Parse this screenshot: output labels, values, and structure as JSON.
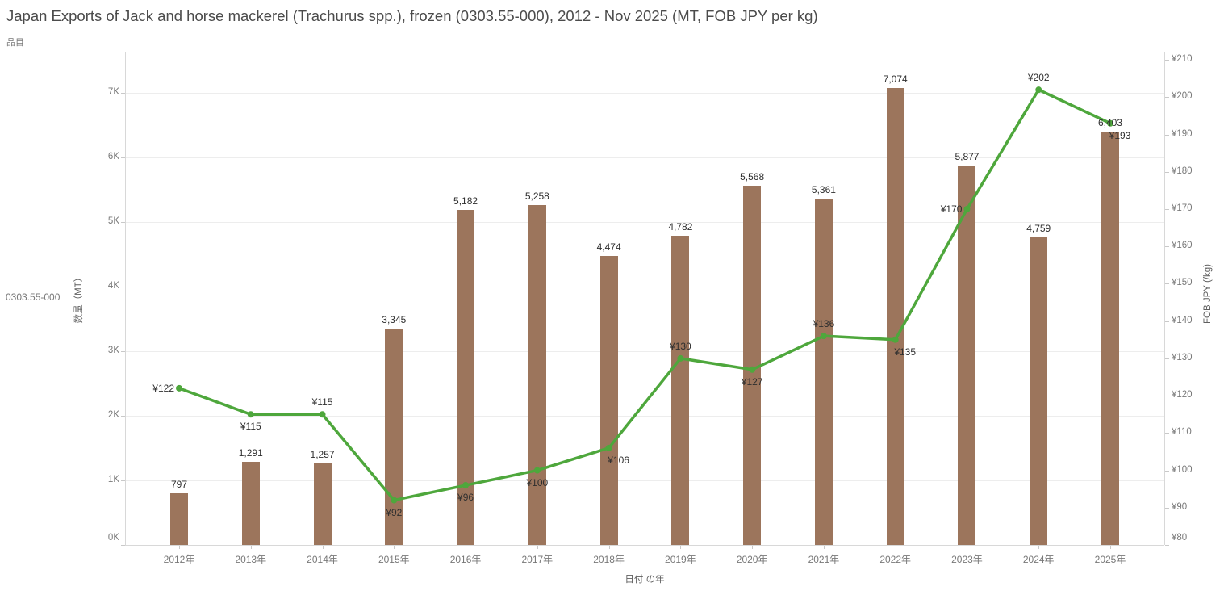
{
  "header": {
    "title": "Japan Exports of Jack and horse mackerel (Trachurus spp.), frozen (0303.55-000), 2012 - Nov 2025 (MT, FOB JPY per kg)",
    "sheet_label": "品目",
    "row_label": "0303.55-000"
  },
  "chart_data": {
    "type": "bar+line combo",
    "title": "Japan Exports of Jack and horse mackerel (Trachurus spp.), frozen (0303.55-000), 2012 - Nov 2025 (MT, FOB JPY per kg)",
    "categories": [
      "2012年",
      "2013年",
      "2014年",
      "2015年",
      "2016年",
      "2017年",
      "2018年",
      "2019年",
      "2020年",
      "2021年",
      "2022年",
      "2023年",
      "2024年",
      "2025年"
    ],
    "series": [
      {
        "name": "数量（MT）",
        "type": "bar",
        "color": "#9c755c",
        "values": [
          797,
          1291,
          1257,
          3345,
          5182,
          5258,
          4474,
          4782,
          5568,
          5361,
          7074,
          5877,
          4759,
          6403
        ],
        "labels": [
          "797",
          "1,291",
          "1,257",
          "3,345",
          "5,182",
          "5,258",
          "4,474",
          "4,782",
          "5,568",
          "5,361",
          "7,074",
          "5,877",
          "4,759",
          "6,403"
        ]
      },
      {
        "name": "FOB JPY (/kg)",
        "type": "line",
        "color": "#4ea73c",
        "values": [
          122,
          115,
          115,
          92,
          96,
          100,
          106,
          130,
          127,
          136,
          135,
          170,
          202,
          193
        ],
        "labels": [
          "¥122",
          "¥115",
          "¥115",
          "¥92",
          "¥96",
          "¥100",
          "¥106",
          "¥130",
          "¥127",
          "¥136",
          "¥135",
          "¥170",
          "¥202",
          "¥193"
        ],
        "label_placement": [
          "left",
          "below",
          "above",
          "below",
          "below",
          "below",
          "below-right",
          "above",
          "below",
          "above",
          "below-right",
          "left",
          "above",
          "below-right"
        ]
      }
    ],
    "axes": {
      "left": {
        "title": "数量（MT）",
        "ticks": [
          "0K",
          "1K",
          "2K",
          "3K",
          "4K",
          "5K",
          "6K",
          "7K"
        ],
        "tick_values": [
          0,
          1000,
          2000,
          3000,
          4000,
          5000,
          6000,
          7000
        ],
        "range": [
          0,
          7637
        ]
      },
      "right": {
        "title": "FOB JPY (/kg)",
        "ticks": [
          "¥80",
          "¥90",
          "¥100",
          "¥110",
          "¥120",
          "¥130",
          "¥140",
          "¥150",
          "¥160",
          "¥170",
          "¥180",
          "¥190",
          "¥200",
          "¥210"
        ],
        "tick_values": [
          80,
          90,
          100,
          110,
          120,
          130,
          140,
          150,
          160,
          170,
          180,
          190,
          200,
          210
        ],
        "range": [
          80,
          212.2
        ]
      },
      "x": {
        "title": "日付 の年"
      }
    },
    "grid": true,
    "legend": "none"
  }
}
